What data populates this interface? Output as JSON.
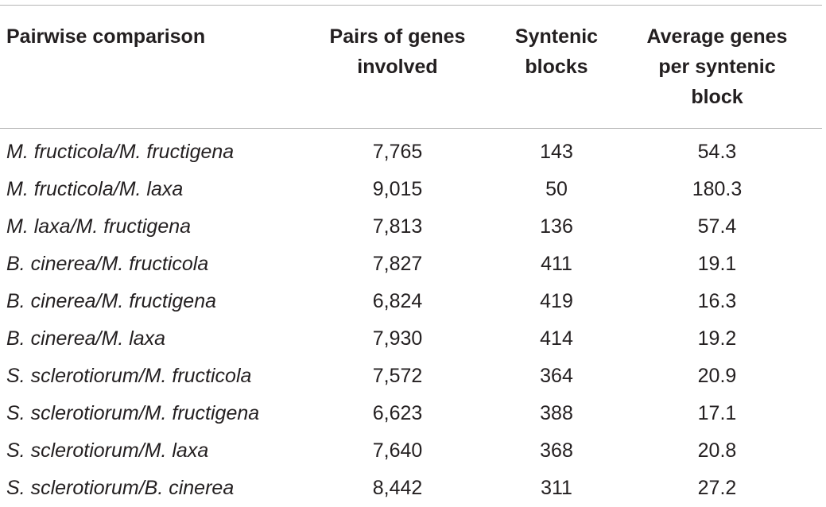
{
  "table": {
    "headers": {
      "pair": "Pairwise comparison",
      "genes_line1": "Pairs of genes",
      "genes_line2": "involved",
      "blocks_line1": "Syntenic",
      "blocks_line2": "blocks",
      "avg_line1": "Average genes",
      "avg_line2": "per syntenic",
      "avg_line3": "block"
    },
    "rows": [
      {
        "pair": "M. fructicola/M. fructigena",
        "genes": "7,765",
        "blocks": "143",
        "avg": "54.3"
      },
      {
        "pair": "M. fructicola/M. laxa",
        "genes": "9,015",
        "blocks": "50",
        "avg": "180.3"
      },
      {
        "pair": "M. laxa/M. fructigena",
        "genes": "7,813",
        "blocks": "136",
        "avg": "57.4"
      },
      {
        "pair": "B. cinerea/M. fructicola",
        "genes": "7,827",
        "blocks": "411",
        "avg": "19.1"
      },
      {
        "pair": "B. cinerea/M. fructigena",
        "genes": "6,824",
        "blocks": "419",
        "avg": "16.3"
      },
      {
        "pair": "B. cinerea/M. laxa",
        "genes": "7,930",
        "blocks": "414",
        "avg": "19.2"
      },
      {
        "pair": "S. sclerotiorum/M. fructicola",
        "genes": "7,572",
        "blocks": "364",
        "avg": "20.9"
      },
      {
        "pair": "S. sclerotiorum/M. fructigena",
        "genes": "6,623",
        "blocks": "388",
        "avg": "17.1"
      },
      {
        "pair": "S. sclerotiorum/M. laxa",
        "genes": "7,640",
        "blocks": "368",
        "avg": "20.8"
      },
      {
        "pair": "S. sclerotiorum/B. cinerea",
        "genes": "8,442",
        "blocks": "311",
        "avg": "27.2"
      }
    ]
  }
}
